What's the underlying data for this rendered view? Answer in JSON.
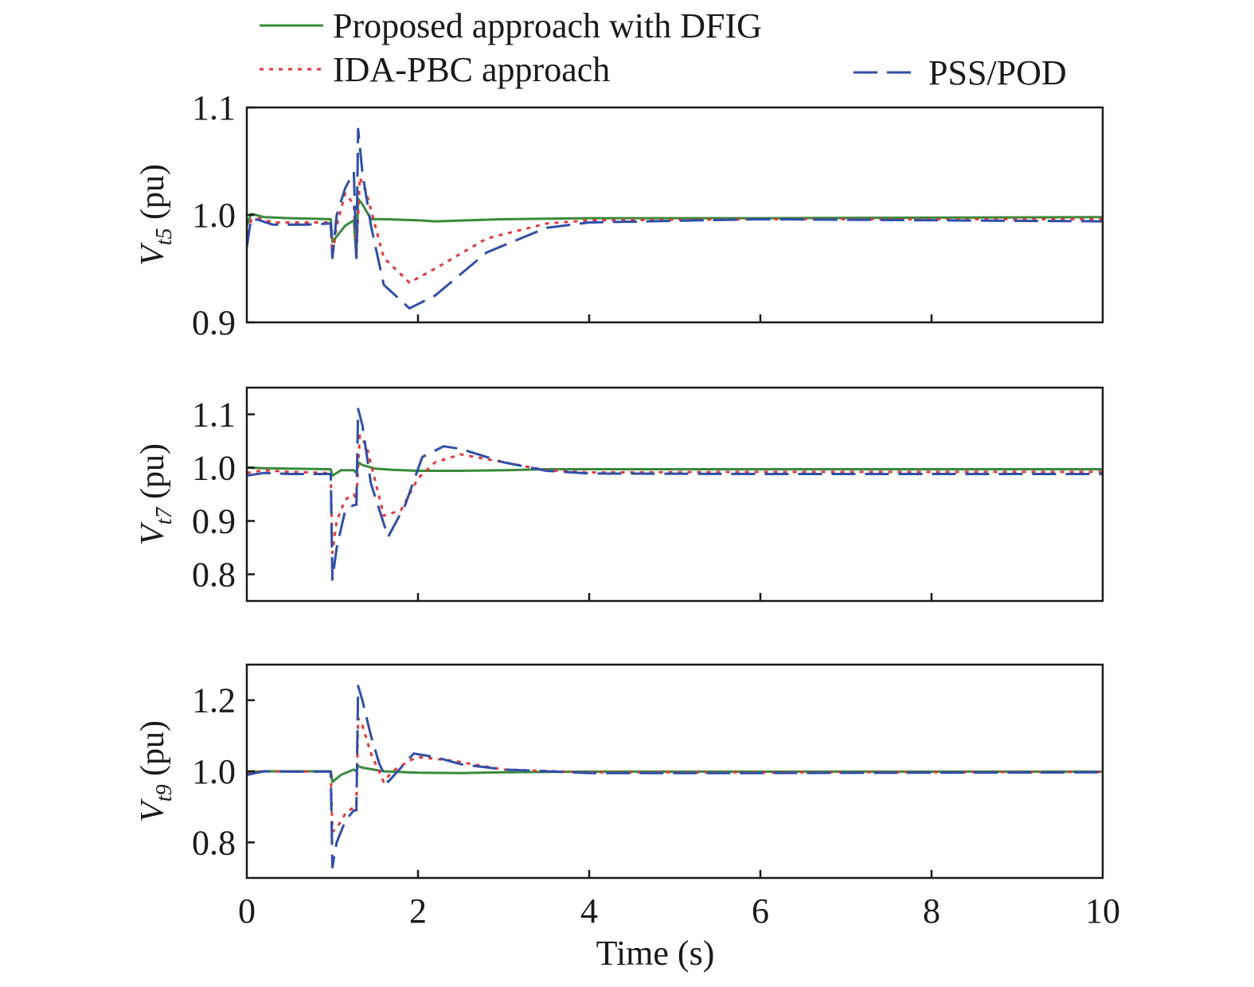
{
  "legend": [
    {
      "label": "Proposed approach with DFIG",
      "color": "#3a8a3a",
      "style": "solid"
    },
    {
      "label": "IDA-PBC approach",
      "color": "#e03a3a",
      "style": "dotted"
    },
    {
      "label": "PSS/POD",
      "color": "#2f4fa8",
      "style": "dashed"
    }
  ],
  "x_axis": {
    "label": "Time (s)",
    "ticks": [
      "0",
      "2",
      "4",
      "6",
      "8",
      "10"
    ]
  },
  "chart_data": [
    {
      "type": "line",
      "ylabel": {
        "symbol": "V",
        "subscript": "t5",
        "unit": "(pu)"
      },
      "xlim": [
        0,
        10
      ],
      "ylim": [
        0.9,
        1.1
      ],
      "yticks": [
        "0.9",
        "1.0",
        "1.1"
      ],
      "xlabel": "Time (s)",
      "series": [
        {
          "name": "Proposed approach with DFIG",
          "x": [
            0,
            0.05,
            0.1,
            0.2,
            0.5,
            0.98,
            1.0,
            1.05,
            1.15,
            1.25,
            1.28,
            1.3,
            1.35,
            1.45,
            1.6,
            2.0,
            2.2,
            3,
            4,
            6,
            10
          ],
          "y": [
            0.99,
            1.001,
            1.0,
            0.998,
            0.997,
            0.996,
            0.975,
            0.98,
            0.99,
            0.995,
            0.96,
            1.015,
            1.01,
            0.996,
            0.996,
            0.995,
            0.994,
            0.996,
            0.997,
            0.997,
            0.998
          ]
        },
        {
          "name": "IDA-PBC approach",
          "x": [
            0,
            0.05,
            0.15,
            0.3,
            0.7,
            0.98,
            1.0,
            1.05,
            1.15,
            1.25,
            1.28,
            1.32,
            1.4,
            1.6,
            1.9,
            2.2,
            2.8,
            3.5,
            4,
            6,
            10
          ],
          "y": [
            0.975,
            0.995,
            0.997,
            0.993,
            0.993,
            0.993,
            0.96,
            0.99,
            1.02,
            1.01,
            0.96,
            1.035,
            1.02,
            0.96,
            0.937,
            0.95,
            0.978,
            0.992,
            0.995,
            0.996,
            0.996
          ]
        },
        {
          "name": "PSS/POD",
          "x": [
            0,
            0.05,
            0.15,
            0.3,
            0.7,
            0.98,
            1.0,
            1.05,
            1.15,
            1.25,
            1.28,
            1.3,
            1.35,
            1.45,
            1.6,
            1.9,
            2.2,
            2.8,
            3.5,
            4,
            6,
            10
          ],
          "y": [
            0.97,
            0.997,
            0.995,
            0.991,
            0.991,
            0.992,
            0.96,
            1.0,
            1.025,
            1.04,
            0.96,
            1.08,
            1.04,
            0.99,
            0.935,
            0.913,
            0.925,
            0.965,
            0.988,
            0.993,
            0.996,
            0.994
          ]
        }
      ]
    },
    {
      "type": "line",
      "ylabel": {
        "symbol": "V",
        "subscript": "t7",
        "unit": "(pu)"
      },
      "xlim": [
        0,
        10
      ],
      "ylim": [
        0.75,
        1.15
      ],
      "yticks": [
        "0.8",
        "0.9",
        "1.0",
        "1.1"
      ],
      "xlabel": "Time (s)",
      "series": [
        {
          "name": "Proposed approach with DFIG",
          "x": [
            0,
            0.2,
            0.5,
            0.98,
            1.0,
            1.1,
            1.25,
            1.28,
            1.3,
            1.35,
            1.5,
            1.7,
            2.0,
            2.5,
            3.0,
            3.5,
            4,
            6,
            10
          ],
          "y": [
            1.0,
            0.999,
            0.998,
            0.997,
            0.985,
            0.995,
            0.995,
            0.99,
            1.01,
            1.005,
            0.998,
            0.996,
            0.994,
            0.994,
            0.995,
            0.997,
            0.997,
            0.997,
            0.997
          ]
        },
        {
          "name": "IDA-PBC approach",
          "x": [
            0,
            0.2,
            0.5,
            0.98,
            1.0,
            1.05,
            1.15,
            1.25,
            1.28,
            1.32,
            1.4,
            1.6,
            1.8,
            2.0,
            2.2,
            2.5,
            3.0,
            3.5,
            4,
            6,
            10
          ],
          "y": [
            0.99,
            0.995,
            0.992,
            0.99,
            0.84,
            0.9,
            0.94,
            0.95,
            0.94,
            1.06,
            1.04,
            0.91,
            0.92,
            0.98,
            1.01,
            1.025,
            1.01,
            0.995,
            0.991,
            0.992,
            0.992
          ]
        },
        {
          "name": "PSS/POD",
          "x": [
            0,
            0.2,
            0.5,
            0.98,
            1.0,
            1.05,
            1.15,
            1.25,
            1.28,
            1.3,
            1.35,
            1.45,
            1.65,
            1.85,
            2.05,
            2.3,
            2.5,
            3.0,
            3.5,
            4,
            6,
            10
          ],
          "y": [
            0.985,
            0.99,
            0.988,
            0.988,
            0.79,
            0.85,
            0.92,
            0.93,
            0.93,
            1.11,
            1.08,
            0.97,
            0.87,
            0.93,
            1.02,
            1.04,
            1.035,
            1.01,
            0.994,
            0.989,
            0.988,
            0.988
          ]
        }
      ]
    },
    {
      "type": "line",
      "ylabel": {
        "symbol": "V",
        "subscript": "t9",
        "unit": "(pu)"
      },
      "xlim": [
        0,
        10
      ],
      "ylim": [
        0.7,
        1.3
      ],
      "yticks": [
        "0.8",
        "1.0",
        "1.2"
      ],
      "xlabel": "Time (s)",
      "series": [
        {
          "name": "Proposed approach with DFIG",
          "x": [
            0,
            0.2,
            0.5,
            0.98,
            1.0,
            1.1,
            1.25,
            1.28,
            1.3,
            1.35,
            1.6,
            2.0,
            2.5,
            3.0,
            4,
            6,
            10
          ],
          "y": [
            0.998,
            1.0,
            1.0,
            1.0,
            0.97,
            0.99,
            1.005,
            1.0,
            1.015,
            1.01,
            1.0,
            0.996,
            0.995,
            0.997,
            0.999,
            0.999,
            0.999
          ]
        },
        {
          "name": "IDA-PBC approach",
          "x": [
            0,
            0.2,
            0.5,
            0.98,
            1.0,
            1.05,
            1.15,
            1.25,
            1.28,
            1.3,
            1.35,
            1.45,
            1.6,
            1.7,
            1.9,
            2.0,
            2.4,
            3.0,
            4,
            6,
            10
          ],
          "y": [
            0.995,
            1.0,
            0.999,
            0.999,
            0.83,
            0.84,
            0.88,
            0.9,
            0.9,
            1.15,
            1.13,
            1.05,
            0.97,
            1.0,
            1.03,
            1.04,
            1.03,
            1.005,
            0.997,
            0.997,
            0.998
          ]
        },
        {
          "name": "PSS/POD",
          "x": [
            0,
            0.2,
            0.5,
            0.98,
            1.0,
            1.05,
            1.15,
            1.25,
            1.28,
            1.3,
            1.35,
            1.45,
            1.55,
            1.65,
            1.8,
            1.95,
            2.2,
            2.5,
            3.0,
            4,
            6,
            10
          ],
          "y": [
            0.99,
            1.0,
            0.999,
            0.999,
            0.73,
            0.8,
            0.86,
            0.89,
            0.89,
            1.24,
            1.2,
            1.1,
            1.02,
            0.97,
            1.01,
            1.05,
            1.04,
            1.02,
            1.005,
            0.995,
            0.995,
            0.997
          ]
        }
      ]
    }
  ]
}
